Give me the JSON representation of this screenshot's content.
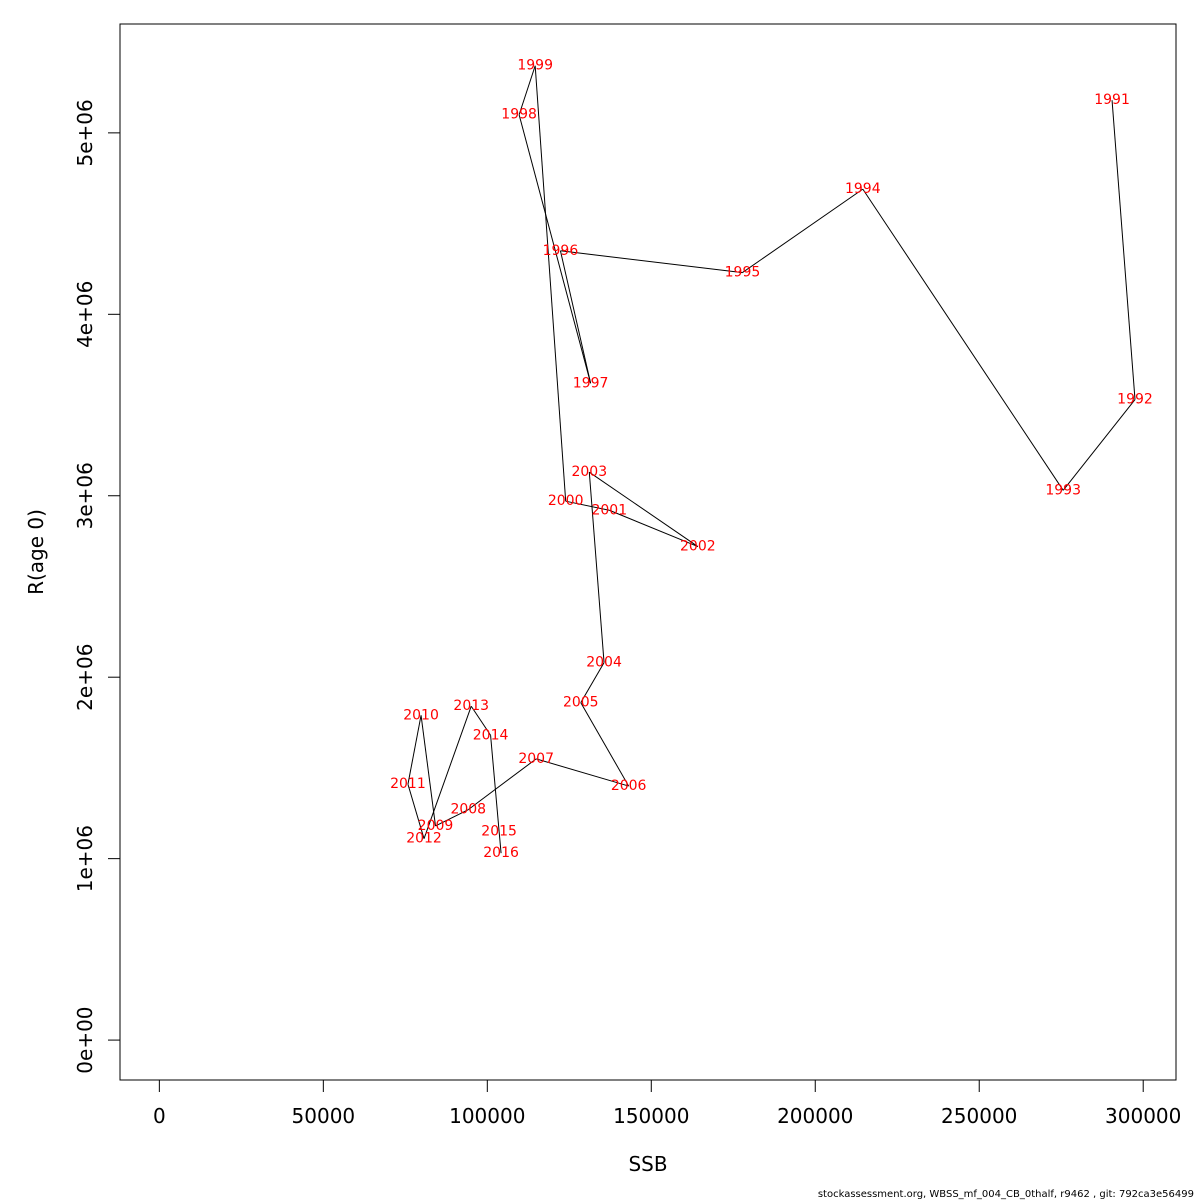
{
  "chart_data": {
    "type": "line",
    "title": "",
    "xlabel": "SSB",
    "ylabel": "R(age 0)",
    "xlim": [
      -12000,
      310000
    ],
    "ylim": [
      -220000,
      5600000
    ],
    "xticks": [
      0,
      50000,
      100000,
      150000,
      200000,
      250000,
      300000
    ],
    "xtick_labels": [
      "0",
      "50000",
      "100000",
      "150000",
      "200000",
      "250000",
      "300000"
    ],
    "yticks": [
      0,
      1000000,
      2000000,
      3000000,
      4000000,
      5000000
    ],
    "ytick_labels": [
      "0e+00",
      "1e+06",
      "2e+06",
      "3e+06",
      "4e+06",
      "5e+06"
    ],
    "label_color": "#ff0000",
    "line_color": "#000000",
    "points": [
      {
        "year": "1991",
        "x": 290500,
        "y": 5180000
      },
      {
        "year": "1992",
        "x": 297500,
        "y": 3530000
      },
      {
        "year": "1993",
        "x": 275600,
        "y": 3030000
      },
      {
        "year": "1994",
        "x": 214500,
        "y": 4690000
      },
      {
        "year": "1995",
        "x": 177800,
        "y": 4230000
      },
      {
        "year": "1996",
        "x": 122300,
        "y": 4350000
      },
      {
        "year": "1997",
        "x": 131500,
        "y": 3620000
      },
      {
        "year": "1998",
        "x": 109700,
        "y": 5100000
      },
      {
        "year": "1999",
        "x": 114600,
        "y": 5370000
      },
      {
        "year": "2000",
        "x": 123900,
        "y": 2970000
      },
      {
        "year": "2001",
        "x": 137200,
        "y": 2920000
      },
      {
        "year": "2002",
        "x": 164200,
        "y": 2720000
      },
      {
        "year": "2003",
        "x": 131100,
        "y": 3130000
      },
      {
        "year": "2004",
        "x": 135600,
        "y": 2080000
      },
      {
        "year": "2005",
        "x": 128500,
        "y": 1860000
      },
      {
        "year": "2006",
        "x": 143100,
        "y": 1400000
      },
      {
        "year": "2007",
        "x": 114900,
        "y": 1550000
      },
      {
        "year": "2008",
        "x": 94200,
        "y": 1270000
      },
      {
        "year": "2009",
        "x": 84200,
        "y": 1180000
      },
      {
        "year": "2010",
        "x": 79800,
        "y": 1790000
      },
      {
        "year": "2011",
        "x": 75800,
        "y": 1410000
      },
      {
        "year": "2012",
        "x": 80700,
        "y": 1110000
      },
      {
        "year": "2013",
        "x": 95100,
        "y": 1840000
      },
      {
        "year": "2014",
        "x": 101000,
        "y": 1680000
      },
      {
        "year": "2015",
        "x": 103600,
        "y": 1150000
      },
      {
        "year": "2016",
        "x": 104200,
        "y": 1030000
      }
    ]
  },
  "footer": "stockassessment.org, WBSS_mf_004_CB_0thalf, r9462 , git: 792ca3e56499"
}
